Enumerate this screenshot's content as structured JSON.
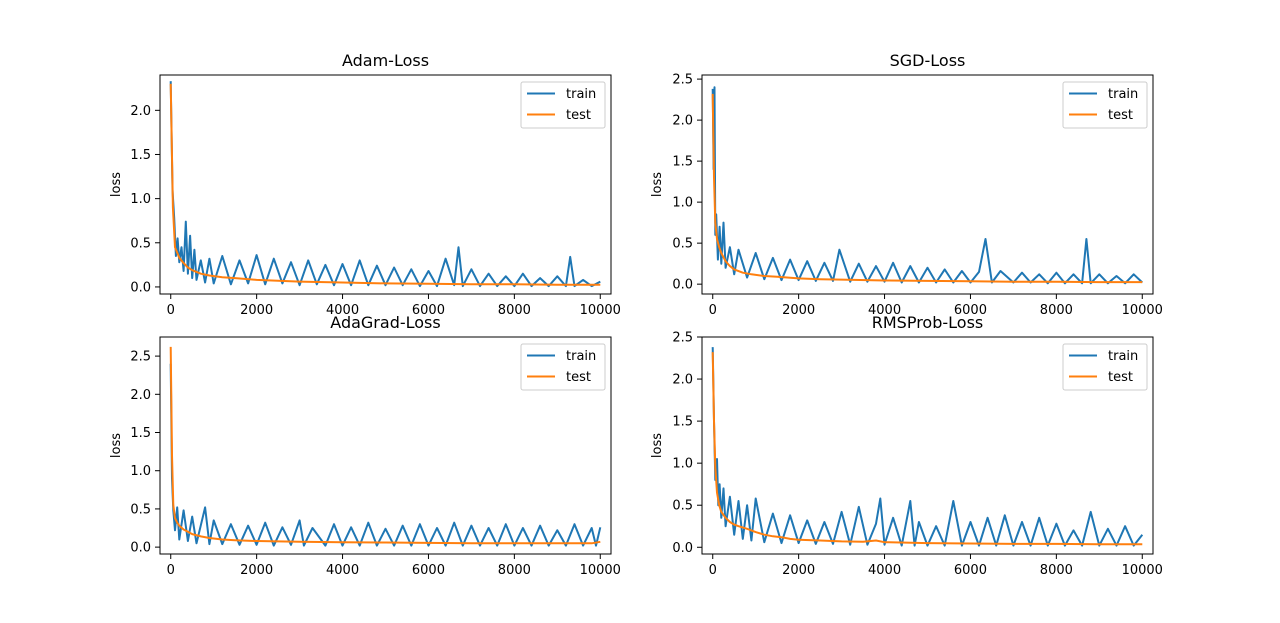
{
  "chart_data": [
    {
      "type": "line",
      "title": "Adam-Loss",
      "ylabel": "loss",
      "xlim": [
        -250,
        10250
      ],
      "ylim": [
        -0.08,
        2.4
      ],
      "xticks": [
        0,
        2000,
        4000,
        6000,
        8000,
        10000
      ],
      "yticks": [
        0.0,
        0.5,
        1.0,
        1.5,
        2.0
      ],
      "ytick_labels": [
        "0.0",
        "0.5",
        "1.0",
        "1.5",
        "2.0"
      ],
      "legend": "top-right",
      "series": [
        {
          "name": "train",
          "color": "#1f77b4",
          "x": [
            0,
            40,
            80,
            120,
            160,
            200,
            250,
            300,
            350,
            400,
            450,
            500,
            550,
            600,
            700,
            800,
            900,
            1000,
            1200,
            1400,
            1600,
            1800,
            2000,
            2200,
            2400,
            2600,
            2800,
            3000,
            3200,
            3400,
            3600,
            3800,
            4000,
            4200,
            4400,
            4600,
            4800,
            5000,
            5200,
            5400,
            5600,
            5800,
            6000,
            6200,
            6400,
            6600,
            6700,
            6800,
            7000,
            7200,
            7400,
            7600,
            7800,
            8000,
            8200,
            8400,
            8600,
            8800,
            9000,
            9200,
            9300,
            9400,
            9600,
            9800,
            10000
          ],
          "y": [
            2.33,
            1.1,
            0.78,
            0.35,
            0.55,
            0.28,
            0.45,
            0.18,
            0.74,
            0.15,
            0.58,
            0.1,
            0.42,
            0.08,
            0.3,
            0.05,
            0.32,
            0.04,
            0.35,
            0.03,
            0.3,
            0.04,
            0.36,
            0.03,
            0.32,
            0.04,
            0.28,
            0.02,
            0.3,
            0.03,
            0.25,
            0.02,
            0.26,
            0.02,
            0.3,
            0.02,
            0.24,
            0.02,
            0.22,
            0.02,
            0.2,
            0.01,
            0.18,
            0.01,
            0.32,
            0.02,
            0.45,
            0.01,
            0.2,
            0.01,
            0.15,
            0.01,
            0.12,
            0.01,
            0.15,
            0.01,
            0.1,
            0.01,
            0.12,
            0.01,
            0.34,
            0.01,
            0.08,
            0.01,
            0.06
          ]
        },
        {
          "name": "test",
          "color": "#ff7f0e",
          "x": [
            0,
            50,
            100,
            200,
            300,
            400,
            500,
            700,
            900,
            1200,
            1500,
            2000,
            2500,
            3000,
            4000,
            5000,
            6000,
            7000,
            8000,
            9000,
            10000
          ],
          "y": [
            2.3,
            0.9,
            0.45,
            0.33,
            0.27,
            0.22,
            0.19,
            0.15,
            0.13,
            0.11,
            0.1,
            0.08,
            0.07,
            0.06,
            0.05,
            0.04,
            0.035,
            0.03,
            0.03,
            0.025,
            0.025
          ]
        }
      ]
    },
    {
      "type": "line",
      "title": "SGD-Loss",
      "ylabel": "loss",
      "xlim": [
        -250,
        10250
      ],
      "ylim": [
        -0.12,
        2.55
      ],
      "xticks": [
        0,
        2000,
        4000,
        6000,
        8000,
        10000
      ],
      "yticks": [
        0.0,
        0.5,
        1.0,
        1.5,
        2.0,
        2.5
      ],
      "ytick_labels": [
        "0.0",
        "0.5",
        "1.0",
        "1.5",
        "2.0",
        "2.5"
      ],
      "legend": "top-right",
      "series": [
        {
          "name": "train",
          "color": "#1f77b4",
          "x": [
            0,
            20,
            40,
            60,
            80,
            120,
            160,
            200,
            250,
            300,
            400,
            500,
            600,
            800,
            1000,
            1200,
            1400,
            1600,
            1800,
            2000,
            2200,
            2400,
            2600,
            2800,
            2950,
            3200,
            3400,
            3600,
            3800,
            4000,
            4200,
            4400,
            4600,
            4800,
            5000,
            5200,
            5400,
            5600,
            5800,
            6000,
            6200,
            6350,
            6500,
            6700,
            7000,
            7200,
            7400,
            7600,
            7800,
            8000,
            8200,
            8400,
            8600,
            8700,
            8800,
            9000,
            9200,
            9400,
            9600,
            9800,
            10000
          ],
          "y": [
            2.38,
            1.4,
            2.4,
            0.6,
            0.85,
            0.3,
            0.7,
            0.25,
            0.75,
            0.2,
            0.45,
            0.12,
            0.42,
            0.08,
            0.38,
            0.06,
            0.32,
            0.05,
            0.3,
            0.05,
            0.28,
            0.04,
            0.26,
            0.04,
            0.42,
            0.03,
            0.25,
            0.03,
            0.22,
            0.03,
            0.26,
            0.02,
            0.22,
            0.02,
            0.2,
            0.02,
            0.18,
            0.02,
            0.16,
            0.02,
            0.15,
            0.55,
            0.02,
            0.16,
            0.02,
            0.14,
            0.02,
            0.12,
            0.01,
            0.14,
            0.01,
            0.12,
            0.01,
            0.55,
            0.01,
            0.12,
            0.01,
            0.1,
            0.01,
            0.12,
            0.02
          ]
        },
        {
          "name": "test",
          "color": "#ff7f0e",
          "x": [
            0,
            30,
            60,
            100,
            150,
            200,
            300,
            400,
            500,
            700,
            900,
            1200,
            1500,
            2000,
            2500,
            3000,
            4000,
            5000,
            6000,
            7000,
            8000,
            9000,
            10000
          ],
          "y": [
            2.32,
            1.3,
            0.75,
            0.55,
            0.45,
            0.38,
            0.28,
            0.22,
            0.18,
            0.14,
            0.12,
            0.1,
            0.09,
            0.07,
            0.06,
            0.055,
            0.045,
            0.04,
            0.035,
            0.03,
            0.03,
            0.025,
            0.025
          ]
        }
      ]
    },
    {
      "type": "line",
      "title": "AdaGrad-Loss",
      "ylabel": "loss",
      "xlim": [
        -250,
        10250
      ],
      "ylim": [
        -0.09,
        2.75
      ],
      "xticks": [
        0,
        2000,
        4000,
        6000,
        8000,
        10000
      ],
      "yticks": [
        0.0,
        0.5,
        1.0,
        1.5,
        2.0,
        2.5
      ],
      "ytick_labels": [
        "0.0",
        "0.5",
        "1.0",
        "1.5",
        "2.0",
        "2.5"
      ],
      "legend": "top-right",
      "series": [
        {
          "name": "train",
          "color": "#1f77b4",
          "x": [
            0,
            30,
            60,
            100,
            150,
            200,
            300,
            400,
            500,
            600,
            800,
            900,
            1000,
            1200,
            1400,
            1600,
            1800,
            2000,
            2200,
            2400,
            2600,
            2800,
            3000,
            3100,
            3300,
            3600,
            3800,
            4000,
            4200,
            4400,
            4600,
            4800,
            5000,
            5200,
            5400,
            5600,
            5800,
            6000,
            6200,
            6400,
            6600,
            6800,
            7000,
            7200,
            7400,
            7600,
            7800,
            8000,
            8200,
            8400,
            8600,
            8800,
            9000,
            9200,
            9400,
            9600,
            9800,
            9900,
            10000
          ],
          "y": [
            2.4,
            0.9,
            0.48,
            0.22,
            0.52,
            0.1,
            0.48,
            0.08,
            0.4,
            0.05,
            0.52,
            0.04,
            0.35,
            0.04,
            0.3,
            0.03,
            0.28,
            0.03,
            0.32,
            0.02,
            0.26,
            0.03,
            0.35,
            0.02,
            0.25,
            0.02,
            0.3,
            0.02,
            0.26,
            0.02,
            0.32,
            0.02,
            0.24,
            0.02,
            0.28,
            0.02,
            0.3,
            0.02,
            0.25,
            0.02,
            0.32,
            0.02,
            0.28,
            0.02,
            0.25,
            0.02,
            0.3,
            0.02,
            0.25,
            0.02,
            0.28,
            0.02,
            0.22,
            0.02,
            0.3,
            0.02,
            0.25,
            0.02,
            0.26
          ]
        },
        {
          "name": "test",
          "color": "#ff7f0e",
          "x": [
            0,
            30,
            60,
            100,
            150,
            200,
            300,
            400,
            500,
            700,
            900,
            1200,
            1500,
            2000,
            2500,
            3000,
            4000,
            5000,
            6000,
            7000,
            8000,
            9000,
            9800,
            10000
          ],
          "y": [
            2.62,
            1.2,
            0.55,
            0.38,
            0.32,
            0.28,
            0.23,
            0.2,
            0.17,
            0.14,
            0.12,
            0.1,
            0.09,
            0.08,
            0.075,
            0.07,
            0.065,
            0.06,
            0.055,
            0.05,
            0.05,
            0.05,
            0.05,
            0.07
          ]
        }
      ]
    },
    {
      "type": "line",
      "title": "RMSProb-Loss",
      "ylabel": "loss",
      "xlim": [
        -250,
        10250
      ],
      "ylim": [
        -0.08,
        2.5
      ],
      "xticks": [
        0,
        2000,
        4000,
        6000,
        8000,
        10000
      ],
      "yticks": [
        0.0,
        0.5,
        1.0,
        1.5,
        2.0,
        2.5
      ],
      "ytick_labels": [
        "0.0",
        "0.5",
        "1.0",
        "1.5",
        "2.0",
        "2.5"
      ],
      "legend": "top-right",
      "series": [
        {
          "name": "train",
          "color": "#1f77b4",
          "x": [
            0,
            30,
            60,
            100,
            130,
            160,
            200,
            250,
            300,
            400,
            500,
            600,
            700,
            800,
            900,
            1000,
            1200,
            1400,
            1600,
            1800,
            2000,
            2200,
            2400,
            2600,
            2800,
            3000,
            3200,
            3400,
            3600,
            3800,
            3900,
            4000,
            4200,
            4400,
            4600,
            4700,
            4800,
            5000,
            5200,
            5400,
            5600,
            5800,
            6000,
            6200,
            6400,
            6600,
            6800,
            7000,
            7200,
            7400,
            7600,
            7800,
            8000,
            8200,
            8400,
            8600,
            8800,
            9000,
            9200,
            9400,
            9600,
            9800,
            10000
          ],
          "y": [
            2.38,
            1.5,
            0.8,
            1.05,
            0.5,
            0.75,
            0.35,
            0.7,
            0.25,
            0.6,
            0.15,
            0.55,
            0.1,
            0.5,
            0.08,
            0.58,
            0.06,
            0.4,
            0.05,
            0.38,
            0.05,
            0.32,
            0.04,
            0.3,
            0.04,
            0.42,
            0.03,
            0.48,
            0.03,
            0.28,
            0.58,
            0.03,
            0.35,
            0.02,
            0.55,
            0.02,
            0.3,
            0.02,
            0.25,
            0.02,
            0.55,
            0.02,
            0.3,
            0.02,
            0.35,
            0.02,
            0.38,
            0.02,
            0.3,
            0.02,
            0.35,
            0.02,
            0.28,
            0.02,
            0.2,
            0.02,
            0.42,
            0.02,
            0.22,
            0.02,
            0.25,
            0.02,
            0.15
          ]
        },
        {
          "name": "test",
          "color": "#ff7f0e",
          "x": [
            0,
            30,
            60,
            100,
            150,
            200,
            300,
            400,
            500,
            600,
            800,
            1000,
            1200,
            1400,
            1600,
            1800,
            2000,
            2500,
            3000,
            3500,
            3800,
            4000,
            4500,
            5000,
            6000,
            7000,
            8000,
            9000,
            10000
          ],
          "y": [
            2.32,
            1.5,
            0.95,
            0.65,
            0.5,
            0.42,
            0.35,
            0.3,
            0.27,
            0.25,
            0.22,
            0.18,
            0.15,
            0.13,
            0.12,
            0.1,
            0.09,
            0.08,
            0.07,
            0.065,
            0.08,
            0.06,
            0.055,
            0.05,
            0.045,
            0.04,
            0.04,
            0.035,
            0.035
          ]
        }
      ]
    }
  ]
}
